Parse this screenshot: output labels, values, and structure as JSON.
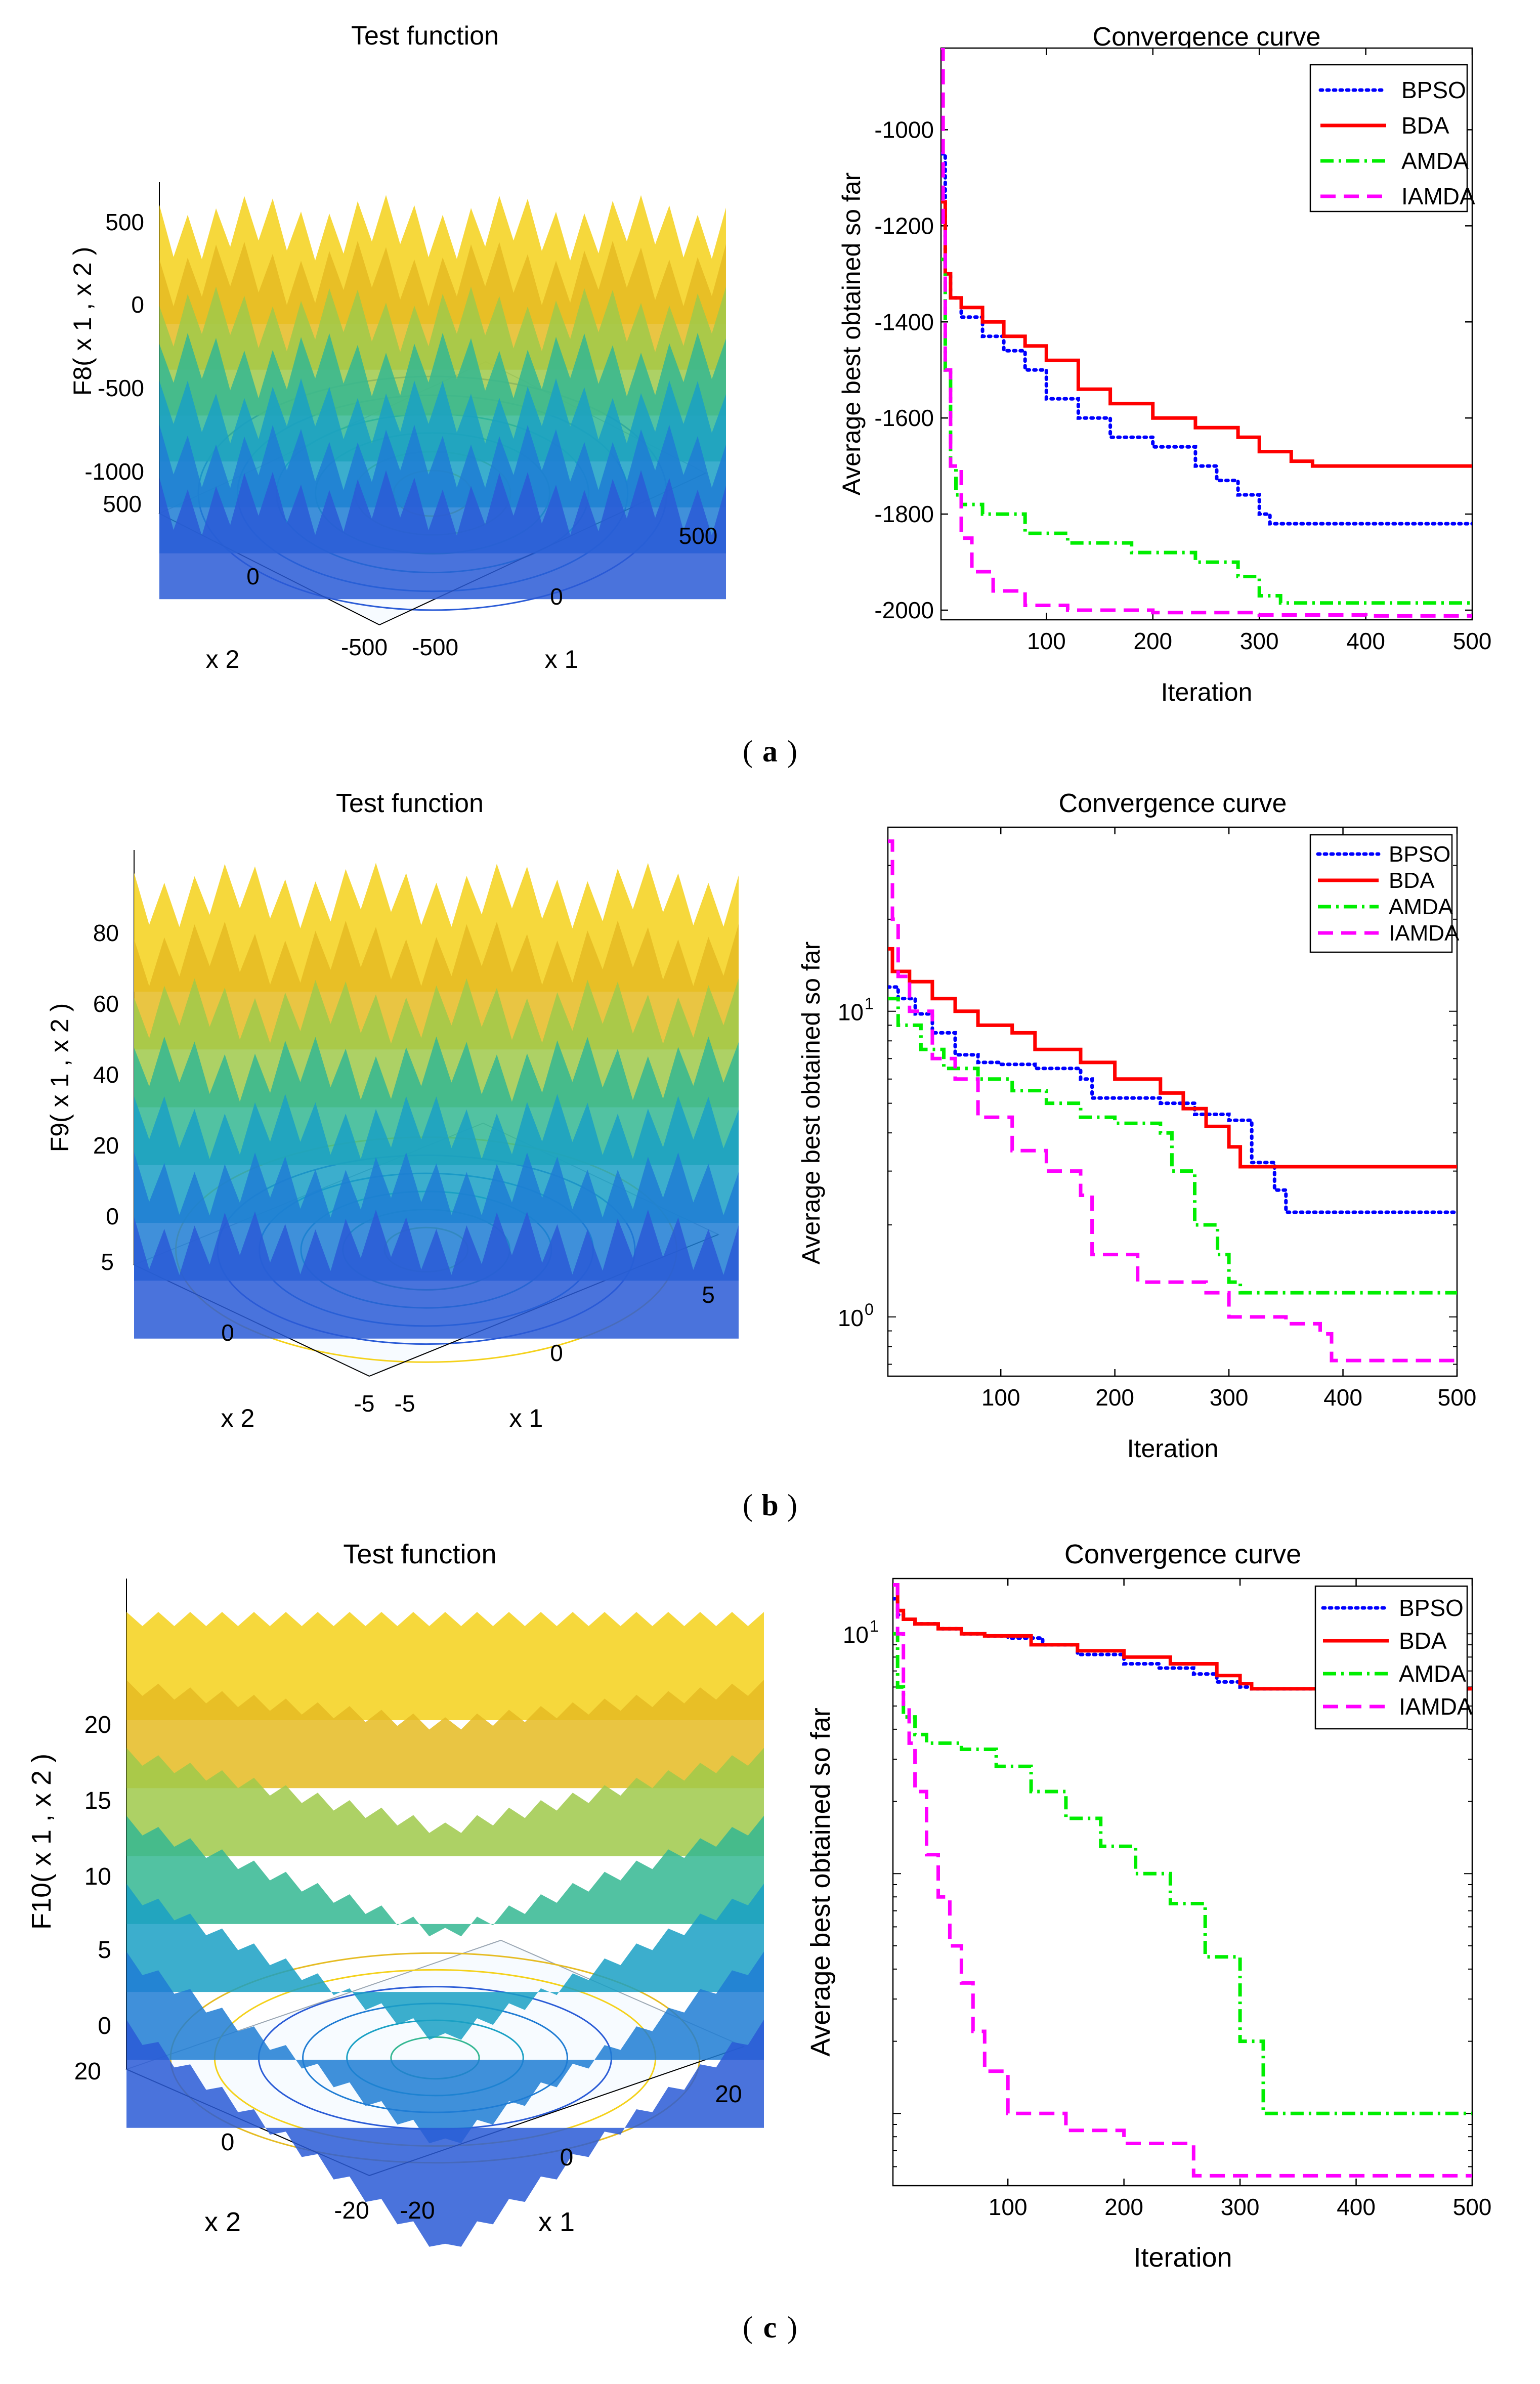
{
  "figure": {
    "panels": [
      {
        "caption_letter": "a",
        "surface": {
          "title": "Test function",
          "zlabel": "F8( x 1 , x 2 )",
          "ztick_labels": [
            "500",
            "0",
            "-500",
            "-1000"
          ],
          "x1_label": "x 1",
          "x2_label": "x 2",
          "x1_tick_labels": [
            "-500",
            "0",
            "500"
          ],
          "x2_tick_labels": [
            "-500",
            "0",
            "500"
          ]
        }
      },
      {
        "caption_letter": "b",
        "surface": {
          "title": "Test function",
          "zlabel": "F9( x 1 , x 2 )",
          "ztick_labels": [
            "80",
            "60",
            "40",
            "20",
            "0"
          ],
          "x1_label": "x 1",
          "x2_label": "x 2",
          "x1_tick_labels": [
            "-5",
            "0",
            "5"
          ],
          "x2_tick_labels": [
            "-5",
            "0",
            "5"
          ]
        }
      },
      {
        "caption_letter": "c",
        "surface": {
          "title": "Test function",
          "zlabel": "F10( x 1 , x 2 )",
          "ztick_labels": [
            "20",
            "15",
            "10",
            "5",
            "0"
          ],
          "x1_label": "x 1",
          "x2_label": "x 2",
          "x1_tick_labels": [
            "-20",
            "0",
            "20"
          ],
          "x2_tick_labels": [
            "-20",
            "0",
            "20"
          ]
        }
      }
    ]
  },
  "chart_data": [
    {
      "type": "line",
      "title": "Convergence curve",
      "xlabel": "Iteration",
      "ylabel": "Average best obtained so far",
      "yscale": "linear",
      "xlim": [
        1,
        500
      ],
      "ylim": [
        -2020,
        -830
      ],
      "xticks": [
        100,
        200,
        300,
        400,
        500
      ],
      "yticks": [
        -2000,
        -1800,
        -1600,
        -1400,
        -1200,
        -1000
      ],
      "legend_position": "top-right",
      "series": [
        {
          "name": "BPSO",
          "color": "#0000ff",
          "dash": "dotted",
          "x": [
            1,
            5,
            10,
            20,
            40,
            60,
            80,
            100,
            130,
            160,
            200,
            240,
            260,
            280,
            300,
            310,
            500
          ],
          "y": [
            -1050,
            -1300,
            -1350,
            -1390,
            -1430,
            -1460,
            -1500,
            -1560,
            -1600,
            -1640,
            -1660,
            -1700,
            -1730,
            -1760,
            -1800,
            -1820,
            -1820
          ]
        },
        {
          "name": "BDA",
          "color": "#ff0000",
          "dash": "solid",
          "x": [
            1,
            5,
            10,
            20,
            40,
            60,
            80,
            100,
            130,
            160,
            200,
            240,
            280,
            300,
            330,
            350,
            500
          ],
          "y": [
            -1150,
            -1300,
            -1350,
            -1370,
            -1400,
            -1430,
            -1450,
            -1480,
            -1540,
            -1570,
            -1600,
            -1620,
            -1640,
            -1670,
            -1690,
            -1700,
            -1700
          ]
        },
        {
          "name": "AMDA",
          "color": "#00ee00",
          "dash": "dashdot",
          "x": [
            1,
            5,
            10,
            15,
            20,
            40,
            80,
            120,
            180,
            240,
            280,
            300,
            320,
            500
          ],
          "y": [
            -1270,
            -1500,
            -1700,
            -1760,
            -1780,
            -1800,
            -1840,
            -1860,
            -1880,
            -1900,
            -1930,
            -1970,
            -1985,
            -1985
          ]
        },
        {
          "name": "IAMDA",
          "color": "#ff00ff",
          "dash": "dashed",
          "x": [
            1,
            3,
            5,
            10,
            20,
            30,
            50,
            80,
            120,
            200,
            300,
            400,
            500
          ],
          "y": [
            -830,
            -1200,
            -1500,
            -1700,
            -1850,
            -1920,
            -1960,
            -1990,
            -2000,
            -2005,
            -2010,
            -2012,
            -2012
          ]
        }
      ]
    },
    {
      "type": "line",
      "title": "Convergence curve",
      "xlabel": "Iteration",
      "ylabel": "Average best obtained so far",
      "yscale": "log",
      "xlim": [
        1,
        500
      ],
      "ylim": [
        0.64,
        40
      ],
      "xticks": [
        100,
        200,
        300,
        400,
        500
      ],
      "ytick_labels": [
        {
          "value": 10,
          "base": "10",
          "exp": "1"
        },
        {
          "value": 1,
          "base": "10",
          "exp": "0"
        }
      ],
      "legend_position": "top-right",
      "series": [
        {
          "name": "BPSO",
          "color": "#0000ff",
          "dash": "dotted",
          "x": [
            1,
            10,
            25,
            40,
            60,
            80,
            100,
            130,
            170,
            180,
            240,
            270,
            300,
            320,
            340,
            350,
            500
          ],
          "y": [
            12,
            11,
            9.8,
            8.5,
            7.2,
            6.8,
            6.7,
            6.5,
            6.0,
            5.2,
            5.0,
            4.6,
            4.4,
            3.2,
            2.6,
            2.2,
            2.2
          ]
        },
        {
          "name": "BDA",
          "color": "#ff0000",
          "dash": "solid",
          "x": [
            1,
            5,
            20,
            40,
            60,
            80,
            110,
            130,
            170,
            200,
            240,
            260,
            280,
            300,
            310,
            500
          ],
          "y": [
            16,
            13.5,
            12.5,
            11,
            10,
            9,
            8.5,
            7.5,
            6.8,
            6,
            5.4,
            4.8,
            4.2,
            3.6,
            3.1,
            3.1
          ]
        },
        {
          "name": "AMDA",
          "color": "#00ee00",
          "dash": "dashdot",
          "x": [
            1,
            10,
            30,
            50,
            80,
            110,
            140,
            170,
            200,
            240,
            250,
            270,
            290,
            300,
            310,
            500
          ],
          "y": [
            11,
            9,
            7.5,
            6.5,
            6,
            5.5,
            5,
            4.5,
            4.3,
            4,
            3,
            2,
            1.6,
            1.3,
            1.2,
            1.2
          ]
        },
        {
          "name": "IAMDA",
          "color": "#ff00ff",
          "dash": "dashed",
          "x": [
            1,
            5,
            10,
            20,
            40,
            60,
            80,
            110,
            140,
            170,
            180,
            220,
            280,
            300,
            350,
            380,
            390,
            500
          ],
          "y": [
            36,
            20,
            13,
            10,
            7,
            6,
            4.5,
            3.5,
            3,
            2.5,
            1.6,
            1.3,
            1.2,
            1.0,
            0.95,
            0.88,
            0.72,
            0.72
          ]
        }
      ]
    },
    {
      "type": "line",
      "title": "Convergence curve",
      "xlabel": "Iteration",
      "ylabel": "Average best obtained so far",
      "yscale": "log",
      "xlim": [
        1,
        500
      ],
      "ylim": [
        0.05,
        17
      ],
      "xticks": [
        100,
        200,
        300,
        400,
        500
      ],
      "ytick_labels": [
        {
          "value": 10,
          "base": "10",
          "exp": "1"
        }
      ],
      "legend_position": "top-right",
      "series": [
        {
          "name": "BPSO",
          "color": "#0000ff",
          "dash": "dotted",
          "x": [
            1,
            5,
            10,
            20,
            40,
            60,
            80,
            100,
            130,
            160,
            200,
            230,
            260,
            280,
            300,
            310,
            500
          ],
          "y": [
            14,
            12,
            11.5,
            11,
            10.5,
            10,
            9.8,
            9.6,
            9,
            8.2,
            7.5,
            7.2,
            6.8,
            6.3,
            6.0,
            5.9,
            5.9
          ]
        },
        {
          "name": "BDA",
          "color": "#ff0000",
          "dash": "solid",
          "x": [
            1,
            5,
            10,
            20,
            40,
            60,
            80,
            120,
            160,
            200,
            240,
            280,
            300,
            310,
            500
          ],
          "y": [
            16,
            12.5,
            11.5,
            11,
            10.5,
            10,
            9.8,
            9,
            8.5,
            8,
            7.5,
            6.7,
            6.2,
            5.9,
            5.9
          ]
        },
        {
          "name": "AMDA",
          "color": "#00ee00",
          "dash": "dashdot",
          "x": [
            1,
            5,
            10,
            20,
            30,
            60,
            90,
            120,
            150,
            180,
            210,
            240,
            270,
            300,
            320,
            500
          ],
          "y": [
            10,
            6,
            4.5,
            3.8,
            3.5,
            3.3,
            2.8,
            2.2,
            1.7,
            1.3,
            1.0,
            0.75,
            0.45,
            0.2,
            0.1,
            0.1
          ]
        },
        {
          "name": "IAMDA",
          "color": "#ff00ff",
          "dash": "dashed",
          "x": [
            1,
            5,
            10,
            15,
            20,
            30,
            40,
            50,
            60,
            70,
            80,
            100,
            150,
            200,
            250,
            260,
            500
          ],
          "y": [
            16,
            10,
            5,
            3.5,
            2.2,
            1.2,
            0.8,
            0.5,
            0.35,
            0.22,
            0.15,
            0.1,
            0.085,
            0.075,
            0.075,
            0.055,
            0.055
          ]
        }
      ]
    }
  ]
}
